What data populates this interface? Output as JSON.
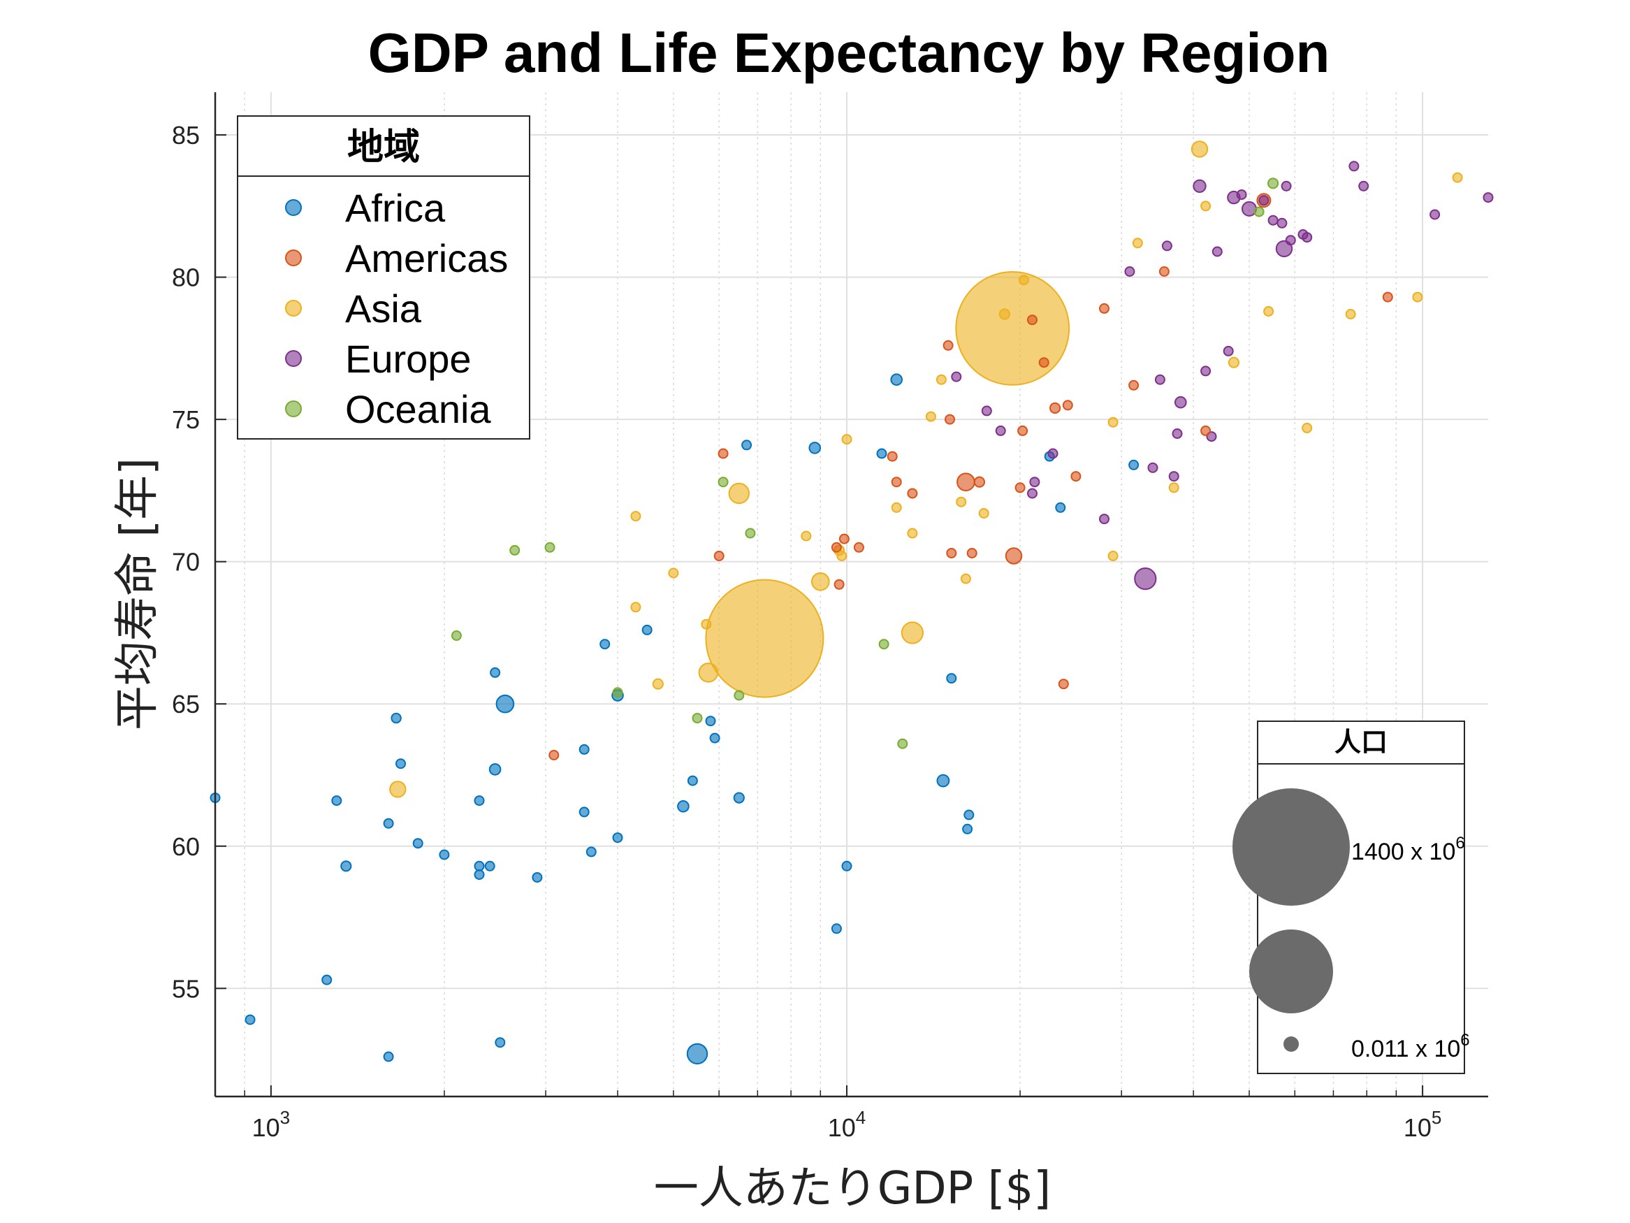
{
  "chart_data": {
    "type": "scatter",
    "title": "GDP and Life Expectancy by Region",
    "xlabel": "一人あたりGDP [$]",
    "ylabel": "平均寿命 [年]",
    "x_scale": "log",
    "xlim": [
      800,
      130000
    ],
    "ylim": [
      51.2,
      86.5
    ],
    "x_ticks": [
      1000,
      10000,
      100000
    ],
    "x_tick_labels": [
      {
        "base": "10",
        "exp": "3"
      },
      {
        "base": "10",
        "exp": "4"
      },
      {
        "base": "10",
        "exp": "5"
      }
    ],
    "y_ticks": [
      55,
      60,
      65,
      70,
      75,
      80,
      85
    ],
    "y_tick_labels": [
      "55",
      "60",
      "65",
      "70",
      "75",
      "80",
      "85"
    ],
    "grid": true,
    "legend": {
      "title": "地域",
      "position": "top-left",
      "entries": [
        "Africa",
        "Americas",
        "Asia",
        "Europe",
        "Oceania"
      ]
    },
    "size_legend": {
      "title": "人口",
      "position": "bottom-right",
      "entries": [
        {
          "population_millions": 1400,
          "label": "1400 x 10",
          "exp": "6"
        },
        {
          "population_millions": 320,
          "label": "",
          "exp": ""
        },
        {
          "population_millions": 0.011,
          "label": "0.011 x 10",
          "exp": "6"
        }
      ]
    },
    "series": [
      {
        "name": "Africa",
        "color": "#0072BD",
        "points": [
          [
            800,
            61.7,
            5
          ],
          [
            920,
            53.9,
            5
          ],
          [
            1250,
            55.3,
            6
          ],
          [
            1300,
            61.6,
            8
          ],
          [
            1350,
            59.3,
            10
          ],
          [
            1600,
            60.8,
            5
          ],
          [
            1600,
            52.6,
            6
          ],
          [
            1650,
            64.5,
            9
          ],
          [
            1680,
            62.9,
            7
          ],
          [
            1800,
            60.1,
            5
          ],
          [
            2000,
            59.7,
            4
          ],
          [
            2300,
            61.6,
            5
          ],
          [
            2300,
            59.3,
            8
          ],
          [
            2300,
            59.0,
            6
          ],
          [
            2400,
            59.3,
            8
          ],
          [
            2450,
            66.1,
            6
          ],
          [
            2450,
            62.7,
            12
          ],
          [
            2500,
            53.1,
            4
          ],
          [
            2550,
            65.0,
            30
          ],
          [
            2900,
            58.9,
            6
          ],
          [
            3500,
            63.4,
            4
          ],
          [
            3500,
            61.2,
            8
          ],
          [
            3600,
            59.8,
            6
          ],
          [
            3800,
            67.1,
            7
          ],
          [
            4000,
            65.3,
            12
          ],
          [
            4000,
            60.3,
            8
          ],
          [
            4500,
            67.6,
            3
          ],
          [
            5200,
            61.4,
            12
          ],
          [
            5400,
            62.3,
            4
          ],
          [
            5500,
            52.7,
            40
          ],
          [
            5800,
            64.4,
            4
          ],
          [
            5900,
            63.8,
            8
          ],
          [
            6500,
            61.7,
            10
          ],
          [
            6700,
            74.1,
            3
          ],
          [
            8800,
            74.0,
            12
          ],
          [
            9600,
            57.1,
            3
          ],
          [
            10000,
            59.3,
            3
          ],
          [
            11500,
            73.8,
            6
          ],
          [
            12200,
            76.4,
            12
          ],
          [
            14700,
            62.3,
            14
          ],
          [
            15200,
            65.9,
            4
          ],
          [
            16300,
            61.1,
            3
          ],
          [
            16200,
            60.6,
            3
          ],
          [
            22500,
            73.7,
            4
          ],
          [
            23500,
            71.9,
            4
          ],
          [
            31500,
            73.4,
            3
          ]
        ]
      },
      {
        "name": "Americas",
        "color": "#D95319",
        "points": [
          [
            3100,
            63.2,
            5
          ],
          [
            6000,
            70.2,
            5
          ],
          [
            6100,
            73.8,
            5
          ],
          [
            9600,
            70.5,
            6
          ],
          [
            9700,
            69.2,
            6
          ],
          [
            9900,
            70.8,
            4
          ],
          [
            10500,
            70.5,
            4
          ],
          [
            12000,
            73.7,
            6
          ],
          [
            12200,
            72.8,
            4
          ],
          [
            13000,
            72.4,
            8
          ],
          [
            15000,
            77.6,
            3
          ],
          [
            15100,
            75.0,
            4
          ],
          [
            15200,
            70.3,
            4
          ],
          [
            16100,
            72.8,
            30
          ],
          [
            16500,
            70.3,
            4
          ],
          [
            17000,
            72.8,
            10
          ],
          [
            19500,
            70.2,
            25
          ],
          [
            20000,
            72.6,
            5
          ],
          [
            20200,
            74.6,
            3
          ],
          [
            21000,
            78.5,
            4
          ],
          [
            22000,
            77.0,
            4
          ],
          [
            23000,
            75.4,
            10
          ],
          [
            23800,
            65.7,
            3
          ],
          [
            24200,
            75.5,
            3
          ],
          [
            25000,
            73.0,
            4
          ],
          [
            28000,
            78.9,
            8
          ],
          [
            31500,
            76.2,
            6
          ],
          [
            35600,
            80.2,
            4
          ],
          [
            42000,
            74.6,
            3
          ],
          [
            53000,
            82.7,
            18
          ],
          [
            87000,
            79.3,
            3
          ]
        ]
      },
      {
        "name": "Asia",
        "color": "#EDB120",
        "points": [
          [
            1660,
            62.0,
            25
          ],
          [
            4300,
            71.6,
            4
          ],
          [
            4300,
            68.4,
            6
          ],
          [
            4700,
            65.7,
            10
          ],
          [
            5000,
            69.6,
            5
          ],
          [
            5700,
            67.8,
            4
          ],
          [
            5750,
            66.1,
            35
          ],
          [
            6500,
            72.4,
            40
          ],
          [
            7200,
            67.3,
            1400
          ],
          [
            8500,
            70.9,
            8
          ],
          [
            9000,
            69.3,
            30
          ],
          [
            9700,
            70.4,
            10
          ],
          [
            9800,
            70.2,
            6
          ],
          [
            10000,
            74.3,
            6
          ],
          [
            12200,
            71.9,
            4
          ],
          [
            13000,
            71.0,
            4
          ],
          [
            13000,
            67.5,
            45
          ],
          [
            14000,
            75.1,
            4
          ],
          [
            14600,
            76.4,
            5
          ],
          [
            15800,
            72.1,
            4
          ],
          [
            16100,
            69.4,
            5
          ],
          [
            17300,
            71.7,
            4
          ],
          [
            18800,
            78.7,
            10
          ],
          [
            19400,
            78.2,
            1300
          ],
          [
            20300,
            79.9,
            4
          ],
          [
            29000,
            74.9,
            8
          ],
          [
            29000,
            70.2,
            6
          ],
          [
            32000,
            81.2,
            4
          ],
          [
            37000,
            72.6,
            4
          ],
          [
            41000,
            84.5,
            25
          ],
          [
            42000,
            82.5,
            5
          ],
          [
            47000,
            77.0,
            10
          ],
          [
            54000,
            78.8,
            4
          ],
          [
            63000,
            74.7,
            3
          ],
          [
            75000,
            78.7,
            5
          ],
          [
            98000,
            79.3,
            6
          ],
          [
            115000,
            83.5,
            5
          ]
        ]
      },
      {
        "name": "Europe",
        "color": "#7E2F8E",
        "points": [
          [
            15500,
            76.5,
            4
          ],
          [
            17500,
            75.3,
            5
          ],
          [
            18500,
            74.6,
            4
          ],
          [
            21000,
            72.4,
            6
          ],
          [
            21200,
            72.8,
            4
          ],
          [
            22800,
            73.8,
            3
          ],
          [
            28000,
            71.5,
            5
          ],
          [
            31000,
            80.2,
            6
          ],
          [
            33000,
            69.4,
            45
          ],
          [
            34000,
            73.3,
            5
          ],
          [
            35000,
            76.4,
            5
          ],
          [
            36000,
            81.1,
            6
          ],
          [
            37000,
            73.0,
            8
          ],
          [
            37500,
            74.5,
            6
          ],
          [
            38000,
            75.6,
            12
          ],
          [
            41000,
            83.2,
            15
          ],
          [
            42000,
            76.7,
            4
          ],
          [
            43000,
            74.4,
            5
          ],
          [
            44000,
            80.9,
            5
          ],
          [
            46000,
            77.4,
            6
          ],
          [
            47000,
            82.8,
            15
          ],
          [
            48500,
            82.9,
            4
          ],
          [
            50000,
            82.4,
            20
          ],
          [
            53000,
            82.7,
            6
          ],
          [
            55000,
            82.0,
            5
          ],
          [
            57000,
            81.9,
            6
          ],
          [
            57500,
            81.0,
            25
          ],
          [
            58000,
            83.2,
            6
          ],
          [
            59000,
            81.3,
            4
          ],
          [
            62000,
            81.5,
            8
          ],
          [
            63000,
            81.4,
            6
          ],
          [
            76000,
            83.9,
            6
          ],
          [
            79000,
            83.2,
            5
          ],
          [
            105000,
            82.2,
            5
          ],
          [
            130000,
            82.8,
            4
          ]
        ]
      },
      {
        "name": "Oceania",
        "color": "#77AC30",
        "points": [
          [
            2100,
            67.4,
            4
          ],
          [
            2650,
            70.4,
            4
          ],
          [
            3050,
            70.5,
            4
          ],
          [
            4000,
            65.4,
            4
          ],
          [
            5500,
            64.5,
            4
          ],
          [
            6100,
            72.8,
            3
          ],
          [
            6500,
            65.3,
            3
          ],
          [
            6800,
            71.0,
            3
          ],
          [
            11600,
            67.1,
            4
          ],
          [
            12500,
            63.6,
            4
          ],
          [
            52000,
            82.3,
            5
          ],
          [
            55000,
            83.3,
            10
          ]
        ]
      }
    ]
  }
}
